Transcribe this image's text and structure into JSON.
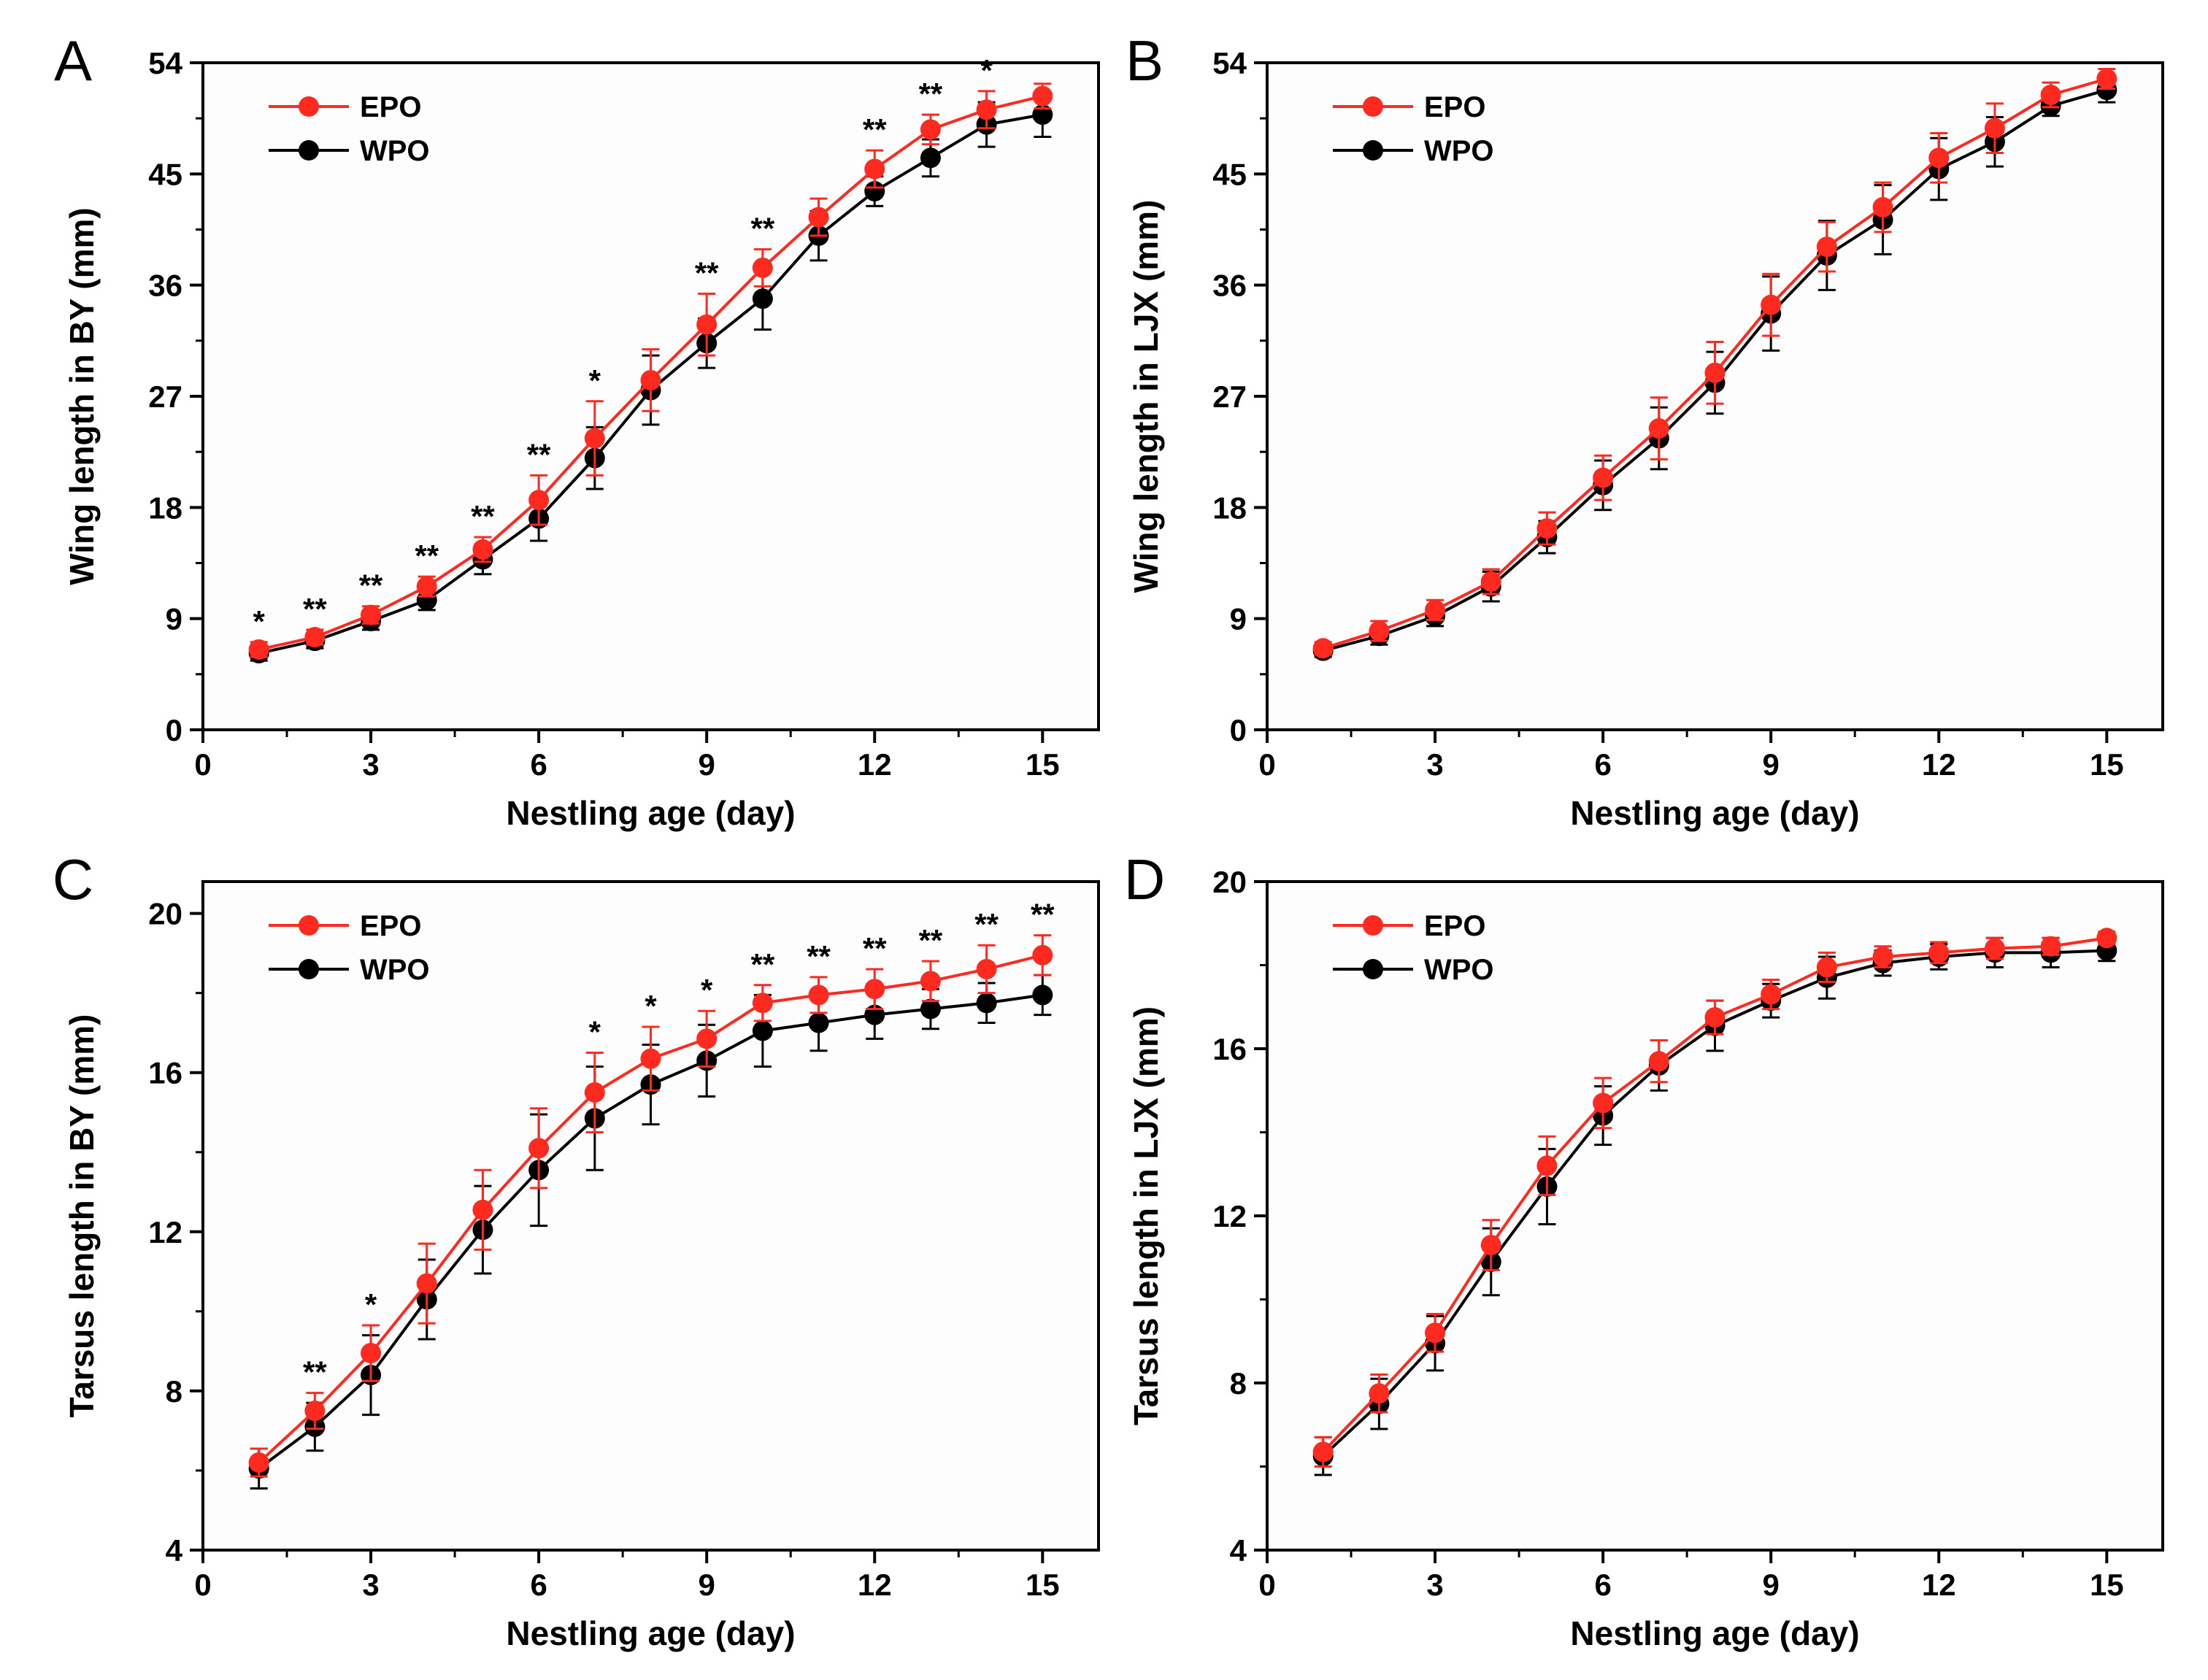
{
  "colors": {
    "EPO": "#ff2a1f",
    "WPO": "#000000",
    "axis": "#000000",
    "background": "#fdfdfd"
  },
  "chart_data": [
    {
      "panel": "A",
      "type": "line",
      "xlabel": "Nestling age (day)",
      "ylabel": "Wing length in BY (mm)",
      "xlim": [
        0,
        16
      ],
      "ylim": [
        0,
        54
      ],
      "xticks": [
        "0",
        "3",
        "6",
        "9",
        "12",
        "15"
      ],
      "yticks": [
        "0",
        "9",
        "18",
        "27",
        "36",
        "45",
        "54"
      ],
      "legend_position": "top-left",
      "grid": false,
      "x": [
        1,
        2,
        3,
        4,
        5,
        6,
        7,
        8,
        9,
        10,
        11,
        12,
        13,
        14,
        15
      ],
      "series": [
        {
          "name": "EPO",
          "color": "#ff2a1f",
          "values": [
            6.5,
            7.5,
            9.3,
            11.6,
            14.6,
            18.6,
            23.6,
            28.3,
            32.8,
            37.4,
            41.5,
            45.4,
            48.6,
            50.2,
            51.3
          ],
          "errors": [
            0.6,
            0.6,
            0.7,
            0.8,
            1.0,
            2.0,
            3.0,
            2.5,
            2.5,
            1.5,
            1.5,
            1.5,
            1.2,
            1.5,
            1.0
          ]
        },
        {
          "name": "WPO",
          "color": "#000000",
          "values": [
            6.2,
            7.2,
            8.8,
            10.5,
            13.8,
            17.1,
            22.0,
            27.5,
            31.3,
            34.9,
            40.0,
            43.6,
            46.3,
            49.0,
            49.8
          ],
          "errors": [
            0.6,
            0.6,
            0.7,
            0.8,
            1.2,
            1.8,
            2.5,
            2.8,
            2.0,
            2.5,
            2.0,
            1.2,
            1.5,
            1.8,
            1.8
          ]
        }
      ],
      "significance": [
        "*",
        "**",
        "**",
        "**",
        "**",
        "**",
        "*",
        "",
        "**",
        "**",
        "",
        "**",
        "**",
        "*",
        ""
      ]
    },
    {
      "panel": "B",
      "type": "line",
      "xlabel": "Nestling age (day)",
      "ylabel": "Wing length in LJX (mm)",
      "xlim": [
        0,
        16
      ],
      "ylim": [
        0,
        54
      ],
      "xticks": [
        "0",
        "3",
        "6",
        "9",
        "12",
        "15"
      ],
      "yticks": [
        "0",
        "9",
        "18",
        "27",
        "36",
        "45",
        "54"
      ],
      "legend_position": "top-left",
      "grid": false,
      "x": [
        1,
        2,
        3,
        4,
        5,
        6,
        7,
        8,
        9,
        10,
        11,
        12,
        13,
        14,
        15
      ],
      "series": [
        {
          "name": "EPO",
          "color": "#ff2a1f",
          "values": [
            6.6,
            8.0,
            9.7,
            12.0,
            16.3,
            20.4,
            24.4,
            28.9,
            34.4,
            39.1,
            42.3,
            46.3,
            48.7,
            51.4,
            52.7
          ],
          "errors": [
            0.5,
            0.8,
            0.8,
            1.0,
            1.3,
            1.8,
            2.5,
            2.5,
            2.5,
            2.0,
            2.0,
            2.0,
            2.0,
            1.0,
            0.8
          ]
        },
        {
          "name": "WPO",
          "color": "#000000",
          "values": [
            6.4,
            7.6,
            9.2,
            11.6,
            15.6,
            19.8,
            23.6,
            28.1,
            33.7,
            38.4,
            41.3,
            45.4,
            47.6,
            50.5,
            51.8
          ],
          "errors": [
            0.5,
            0.7,
            0.8,
            1.2,
            1.3,
            2.0,
            2.5,
            2.5,
            3.0,
            2.8,
            2.8,
            2.5,
            2.0,
            0.8,
            1.0
          ]
        }
      ],
      "significance": []
    },
    {
      "panel": "C",
      "type": "line",
      "xlabel": "Nestling age (day)",
      "ylabel": "Tarsus length in BY (mm)",
      "xlim": [
        0,
        16
      ],
      "ylim": [
        4,
        20.8
      ],
      "xticks": [
        "0",
        "3",
        "6",
        "9",
        "12",
        "15"
      ],
      "yticks": [
        "4",
        "8",
        "12",
        "16",
        "20"
      ],
      "legend_position": "top-left",
      "grid": false,
      "x": [
        1,
        2,
        3,
        4,
        5,
        6,
        7,
        8,
        9,
        10,
        11,
        12,
        13,
        14,
        15
      ],
      "series": [
        {
          "name": "EPO",
          "color": "#ff2a1f",
          "values": [
            6.2,
            7.5,
            8.95,
            10.7,
            12.55,
            14.1,
            15.5,
            16.35,
            16.85,
            17.75,
            17.95,
            18.1,
            18.3,
            18.6,
            18.95
          ],
          "errors": [
            0.35,
            0.45,
            0.7,
            1.0,
            1.0,
            1.0,
            1.0,
            0.8,
            0.7,
            0.45,
            0.45,
            0.5,
            0.5,
            0.6,
            0.5
          ]
        },
        {
          "name": "WPO",
          "color": "#000000",
          "values": [
            6.05,
            7.1,
            8.4,
            10.3,
            12.05,
            13.55,
            14.85,
            15.7,
            16.3,
            17.05,
            17.25,
            17.45,
            17.6,
            17.75,
            17.95
          ],
          "errors": [
            0.5,
            0.6,
            1.0,
            1.0,
            1.1,
            1.4,
            1.3,
            1.0,
            0.9,
            0.9,
            0.7,
            0.6,
            0.5,
            0.5,
            0.5
          ]
        }
      ],
      "significance": [
        "",
        "**",
        "*",
        "",
        "",
        "",
        "*",
        "*",
        "*",
        "**",
        "**",
        "**",
        "**",
        "**",
        "**"
      ]
    },
    {
      "panel": "D",
      "type": "line",
      "xlabel": "Nestling age (day)",
      "ylabel": "Tarsus length in LJX (mm)",
      "xlim": [
        0,
        16
      ],
      "ylim": [
        4,
        20
      ],
      "xticks": [
        "0",
        "3",
        "6",
        "9",
        "12",
        "15"
      ],
      "yticks": [
        "4",
        "8",
        "12",
        "16",
        "20"
      ],
      "legend_position": "top-left",
      "grid": false,
      "x": [
        1,
        2,
        3,
        4,
        5,
        6,
        7,
        8,
        9,
        10,
        11,
        12,
        13,
        14,
        15
      ],
      "series": [
        {
          "name": "EPO",
          "color": "#ff2a1f",
          "values": [
            6.35,
            7.75,
            9.2,
            11.3,
            13.2,
            14.7,
            15.7,
            16.75,
            17.3,
            17.95,
            18.2,
            18.3,
            18.4,
            18.45,
            18.65
          ],
          "errors": [
            0.35,
            0.45,
            0.45,
            0.6,
            0.7,
            0.6,
            0.5,
            0.4,
            0.35,
            0.35,
            0.25,
            0.25,
            0.25,
            0.2,
            0.15
          ]
        },
        {
          "name": "WPO",
          "color": "#000000",
          "values": [
            6.25,
            7.5,
            8.95,
            10.9,
            12.7,
            14.4,
            15.6,
            16.55,
            17.15,
            17.7,
            18.05,
            18.2,
            18.3,
            18.3,
            18.35
          ],
          "errors": [
            0.45,
            0.6,
            0.65,
            0.8,
            0.9,
            0.7,
            0.6,
            0.6,
            0.4,
            0.5,
            0.3,
            0.3,
            0.35,
            0.35,
            0.25
          ]
        }
      ],
      "significance": []
    }
  ]
}
